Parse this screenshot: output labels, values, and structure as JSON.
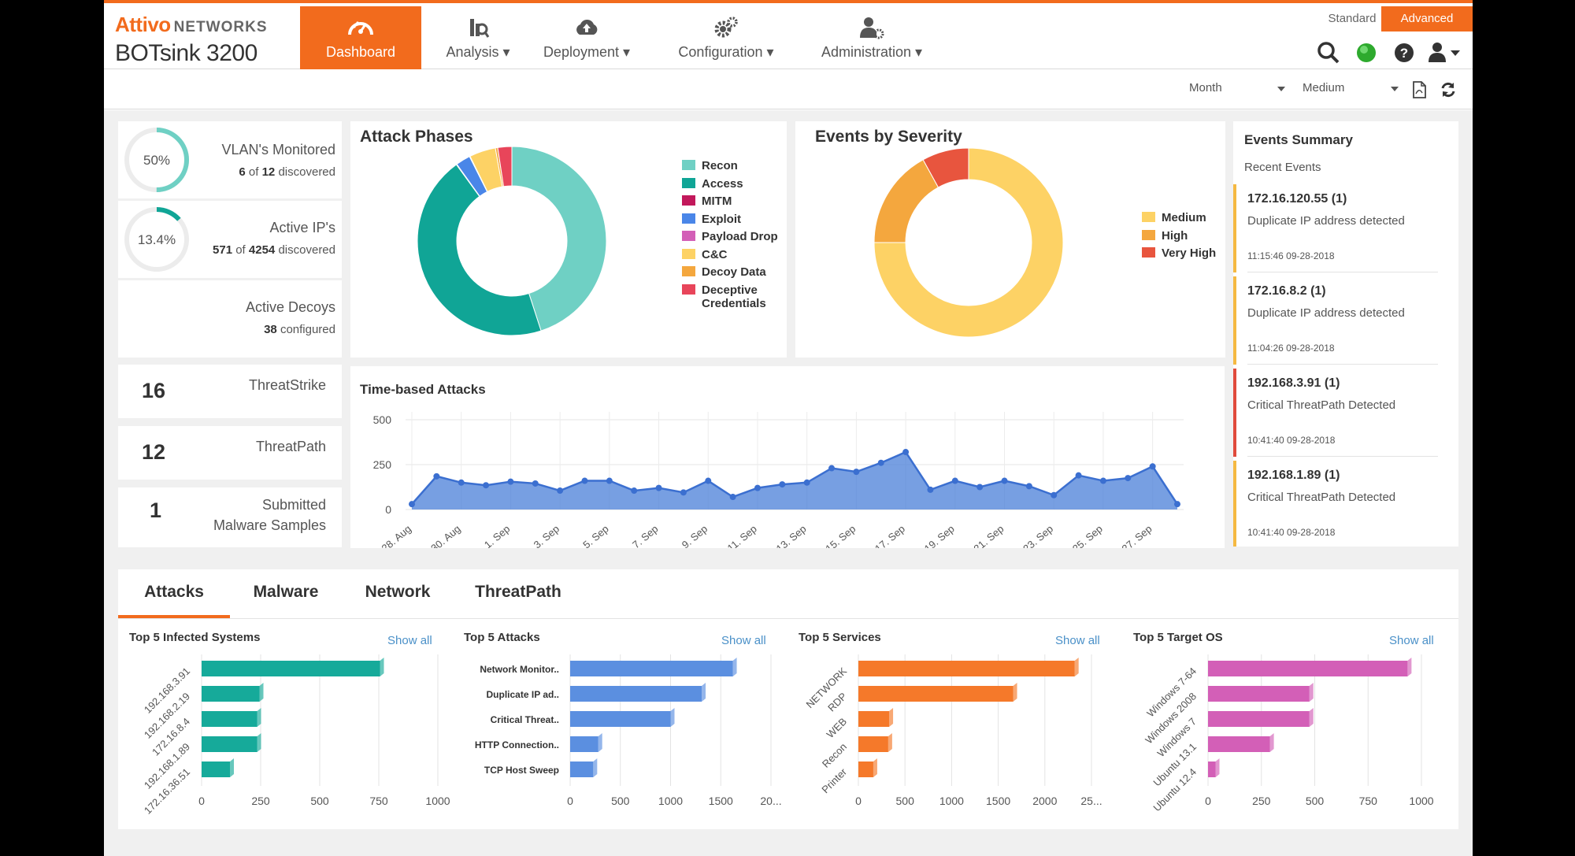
{
  "brand": {
    "name": "Attivo",
    "suffix": "NETWORKS",
    "model": "BOTsink 3200"
  },
  "nav": [
    {
      "label": "Dashboard",
      "icon": "dashboard-gauge-icon",
      "active": true
    },
    {
      "label": "Analysis",
      "icon": "analysis-icon",
      "dropdown": true
    },
    {
      "label": "Deployment",
      "icon": "cloud-upload-icon",
      "dropdown": true
    },
    {
      "label": "Configuration",
      "icon": "gears-icon",
      "dropdown": true
    },
    {
      "label": "Administration",
      "icon": "user-gear-icon",
      "dropdown": true
    }
  ],
  "modes": {
    "standard": "Standard",
    "advanced": "Advanced",
    "active": "Advanced"
  },
  "utility_icons": [
    "search-icon",
    "status-green-icon",
    "help-icon",
    "user-menu-icon"
  ],
  "filters": {
    "period": "Month",
    "level": "Medium"
  },
  "stats": {
    "vlans": {
      "percent": "50%",
      "fraction": 0.5,
      "label": "VLAN's Monitored",
      "count": "6",
      "of": "of",
      "total": "12",
      "suffix": "discovered"
    },
    "ips": {
      "percent": "13.4%",
      "fraction": 0.134,
      "label": "Active IP's",
      "count": "571",
      "of": "of",
      "total": "4254",
      "suffix": "discovered"
    },
    "decoys": {
      "label": "Active Decoys",
      "count": "38",
      "suffix": "configured"
    },
    "threatstrike": {
      "value": "16",
      "label": "ThreatStrike"
    },
    "threatpath": {
      "value": "12",
      "label": "ThreatPath"
    },
    "malware": {
      "value": "1",
      "label1": "Submitted",
      "label2": "Malware Samples"
    }
  },
  "attack_phases": {
    "title": "Attack Phases",
    "legend": [
      {
        "label": "Recon",
        "color": "#6fd0c4"
      },
      {
        "label": "Access",
        "color": "#10a596"
      },
      {
        "label": "MITM",
        "color": "#c2185b"
      },
      {
        "label": "Exploit",
        "color": "#4a86e8"
      },
      {
        "label": "Payload Drop",
        "color": "#d35fb7"
      },
      {
        "label": "C&C",
        "color": "#fdd265"
      },
      {
        "label": "Decoy Data",
        "color": "#f4a73e"
      },
      {
        "label": "Deceptive",
        "label2": "Credentials",
        "color": "#e8455a"
      }
    ]
  },
  "events_by_severity": {
    "title": "Events by Severity",
    "legend": [
      {
        "label": "Medium",
        "color": "#fdd265"
      },
      {
        "label": "High",
        "color": "#f4a73e"
      },
      {
        "label": "Very High",
        "color": "#e8553e"
      }
    ]
  },
  "events_summary": {
    "title": "Events Summary",
    "subtitle": "Recent Events",
    "events": [
      {
        "ip": "172.16.120.55 (1)",
        "msg": "Duplicate IP address detected",
        "ts": "11:15:46 09-28-2018",
        "color": "#f5b942"
      },
      {
        "ip": "172.16.8.2 (1)",
        "msg": "Duplicate IP address detected",
        "ts": "11:04:26 09-28-2018",
        "color": "#f5b942"
      },
      {
        "ip": "192.168.3.91 (1)",
        "msg": "Critical ThreatPath Detected",
        "ts": "10:41:40 09-28-2018",
        "color": "#e04a3c"
      },
      {
        "ip": "192.168.1.89 (1)",
        "msg": "Critical ThreatPath Detected",
        "ts": "10:41:40 09-28-2018",
        "color": "#f5b942"
      }
    ]
  },
  "tabs": [
    "Attacks",
    "Malware",
    "Network",
    "ThreatPath"
  ],
  "active_tab": "Attacks",
  "panels": [
    {
      "title": "Top 5 Infected Systems",
      "show_all": "Show all"
    },
    {
      "title": "Top 5 Attacks",
      "show_all": "Show all"
    },
    {
      "title": "Top 5 Services",
      "show_all": "Show all"
    },
    {
      "title": "Top 5 Target OS",
      "show_all": "Show all"
    }
  ],
  "chart_data": [
    {
      "id": "attack-phases",
      "type": "pie",
      "title": "Attack Phases",
      "donut": true,
      "categories": [
        "Recon",
        "Access",
        "MITM",
        "Exploit",
        "Payload Drop",
        "C&C",
        "Decoy Data",
        "Deceptive Credentials"
      ],
      "values": [
        45,
        45,
        0.1,
        2.5,
        0.1,
        4.5,
        0.4,
        2.4
      ],
      "colors": [
        "#6fd0c4",
        "#10a596",
        "#c2185b",
        "#4a86e8",
        "#d35fb7",
        "#fdd265",
        "#f4a73e",
        "#e8455a"
      ],
      "legend": "right"
    },
    {
      "id": "events-severity",
      "type": "pie",
      "title": "Events by Severity",
      "donut": true,
      "categories": [
        "Medium",
        "High",
        "Very High"
      ],
      "values": [
        75,
        17,
        8
      ],
      "colors": [
        "#fdd265",
        "#f4a73e",
        "#e8553e"
      ],
      "legend": "right"
    },
    {
      "id": "time-based-attacks",
      "type": "area",
      "title": "Time-based Attacks",
      "x": [
        "28. Aug",
        "29. Aug",
        "30. Aug",
        "31. Aug",
        "1. Sep",
        "2. Sep",
        "3. Sep",
        "4. Sep",
        "5. Sep",
        "6. Sep",
        "7. Sep",
        "8. Sep",
        "9. Sep",
        "10. Sep",
        "11. Sep",
        "12. Sep",
        "13. Sep",
        "14. Sep",
        "15. Sep",
        "16. Sep",
        "17. Sep",
        "18. Sep",
        "19. Sep",
        "20. Sep",
        "21. Sep",
        "22. Sep",
        "23. Sep",
        "24. Sep",
        "25. Sep",
        "26. Sep",
        "27. Sep",
        "28. Sep"
      ],
      "values": [
        30,
        185,
        150,
        135,
        155,
        145,
        105,
        160,
        160,
        105,
        120,
        95,
        160,
        70,
        120,
        140,
        150,
        230,
        210,
        260,
        320,
        110,
        160,
        125,
        160,
        130,
        80,
        190,
        160,
        175,
        240,
        30
      ],
      "xticks": [
        "28. Aug",
        "30. Aug",
        "1. Sep",
        "3. Sep",
        "5. Sep",
        "7. Sep",
        "9. Sep",
        "11. Sep",
        "13. Sep",
        "15. Sep",
        "17. Sep",
        "19. Sep",
        "21. Sep",
        "23. Sep",
        "25. Sep",
        "27. Sep"
      ],
      "yticks": [
        "500",
        "250",
        "0"
      ],
      "ylim": [
        0,
        500
      ],
      "color": "#4a7fd8",
      "grid": true
    },
    {
      "id": "top5-infected",
      "type": "bar",
      "orientation": "horizontal",
      "title": "Top 5 Infected Systems",
      "categories": [
        "192.168.3.91",
        "192.168.2.19",
        "172.16.8.4",
        "192.168.1.89",
        "172.16.36.51"
      ],
      "values": [
        755,
        245,
        235,
        235,
        120
      ],
      "xlim": [
        0,
        1000
      ],
      "xticks": [
        "0",
        "250",
        "500",
        "750",
        "1000"
      ],
      "color": "#16aa9a"
    },
    {
      "id": "top5-attacks",
      "type": "bar",
      "orientation": "horizontal",
      "title": "Top 5 Attacks",
      "categories": [
        "Network Monitor..",
        "Duplicate IP ad..",
        "Critical Threat..",
        "HTTP Connection..",
        "TCP Host Sweep"
      ],
      "values": [
        1620,
        1310,
        1000,
        280,
        230
      ],
      "xlim": [
        0,
        2000
      ],
      "xticks": [
        "0",
        "500",
        "1000",
        "1500",
        "20..."
      ],
      "color": "#5b8fe0"
    },
    {
      "id": "top5-services",
      "type": "bar",
      "orientation": "horizontal",
      "title": "Top 5 Services",
      "categories": [
        "NETWORK",
        "RDP",
        "WEB",
        "Recon",
        "Printer"
      ],
      "values": [
        2320,
        1660,
        330,
        320,
        160
      ],
      "xlim": [
        0,
        2500
      ],
      "xticks": [
        "0",
        "500",
        "1000",
        "1500",
        "2000",
        "25..."
      ],
      "color": "#f5792a"
    },
    {
      "id": "top5-os",
      "type": "bar",
      "orientation": "horizontal",
      "title": "Top 5 Target OS",
      "categories": [
        "Windows 7-64",
        "Windows 2008",
        "Windows 7",
        "Ubuntu 13.1",
        "Ubuntu 12.4"
      ],
      "values": [
        935,
        475,
        475,
        290,
        35
      ],
      "xlim": [
        0,
        1000
      ],
      "xticks": [
        "0",
        "250",
        "500",
        "750",
        "1000"
      ],
      "color": "#d35fb7"
    }
  ]
}
